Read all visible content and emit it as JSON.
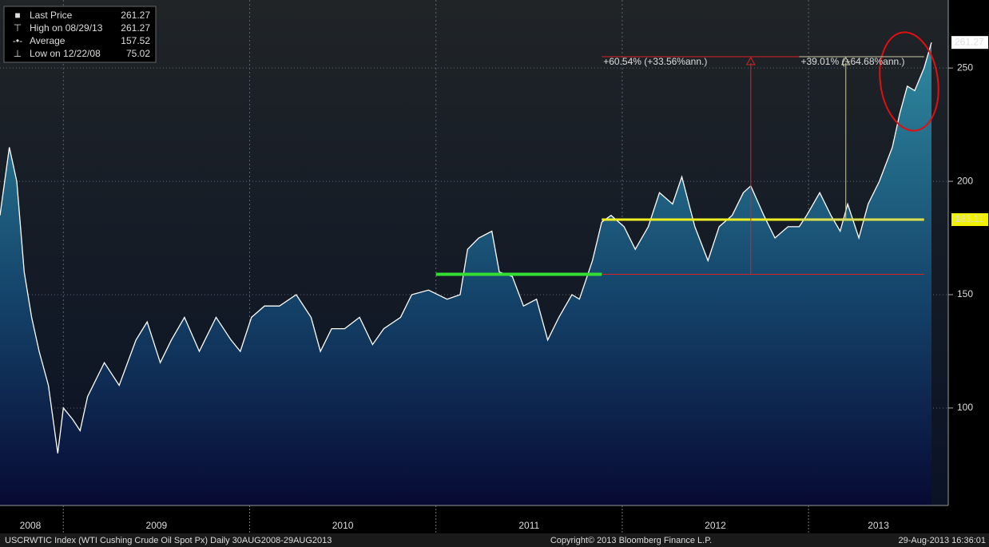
{
  "chart_data": {
    "type": "area",
    "color": "#ffffff",
    "x": [
      2008.66,
      2008.71,
      2008.75,
      2008.79,
      2008.83,
      2008.87,
      2008.92,
      2008.97,
      2009.0,
      2009.05,
      2009.09,
      2009.13,
      2009.22,
      2009.3,
      2009.39,
      2009.45,
      2009.52,
      2009.58,
      2009.65,
      2009.73,
      2009.82,
      2009.9,
      2009.95,
      2010.01,
      2010.08,
      2010.16,
      2010.25,
      2010.33,
      2010.38,
      2010.44,
      2010.51,
      2010.59,
      2010.66,
      2010.72,
      2010.81,
      2010.87,
      2010.96,
      2011.06,
      2011.13,
      2011.17,
      2011.23,
      2011.3,
      2011.34,
      2011.41,
      2011.47,
      2011.54,
      2011.6,
      2011.66,
      2011.73,
      2011.77,
      2011.84,
      2011.89,
      2011.94,
      2012.01,
      2012.07,
      2012.14,
      2012.2,
      2012.27,
      2012.32,
      2012.39,
      2012.46,
      2012.52,
      2012.59,
      2012.65,
      2012.69,
      2012.76,
      2012.82,
      2012.89,
      2012.95,
      2012.99,
      2013.06,
      2013.12,
      2013.17,
      2013.21,
      2013.27,
      2013.32,
      2013.38,
      2013.45,
      2013.49,
      2013.53,
      2013.57,
      2013.62,
      2013.66
    ],
    "values": [
      185,
      215,
      200,
      160,
      140,
      125,
      110,
      80,
      100,
      95,
      90,
      105,
      120,
      110,
      130,
      138,
      120,
      130,
      140,
      125,
      140,
      130,
      125,
      140,
      145,
      145,
      150,
      140,
      125,
      135,
      135,
      140,
      128,
      135,
      140,
      150,
      152,
      148,
      150,
      170,
      175,
      178,
      160,
      158,
      145,
      148,
      130,
      140,
      150,
      148,
      165,
      182,
      185,
      180,
      170,
      180,
      195,
      190,
      202,
      180,
      165,
      180,
      185,
      195,
      198,
      185,
      175,
      180,
      180,
      185,
      195,
      185,
      178,
      190,
      175,
      190,
      200,
      215,
      230,
      242,
      240,
      250,
      261.27
    ],
    "xlim": [
      2008.66,
      2013.75
    ],
    "ylim": [
      57,
      280
    ],
    "yticks": [
      100,
      150,
      200,
      250
    ],
    "xticks": [
      2009,
      2010,
      2011,
      2012,
      2013
    ],
    "year_labels": [
      "2008",
      "2009",
      "2010",
      "2011",
      "2012",
      "2013"
    ],
    "grid": true,
    "legend": [
      {
        "label": "Last Price",
        "value": 261.27
      },
      {
        "label": "High on 08/29/13",
        "value": 261.27
      },
      {
        "label": "Average",
        "value": 157.52
      },
      {
        "label": "Low on 12/22/08",
        "value": 75.02
      }
    ],
    "last_value_label": 261.27,
    "level_value_label": 183.11,
    "levels": [
      {
        "value": 159,
        "from": 2011.0,
        "to": 2011.89,
        "color": "#33dd33"
      },
      {
        "value": 183.11,
        "from": 2011.89,
        "to": 2013.62,
        "color": "#eeee22"
      }
    ],
    "annotations": [
      {
        "text": "+60.54% (+33.56%ann.)",
        "color": "#dd2222",
        "base": 159,
        "top": 255,
        "at": 2012.69,
        "from": 2011.89,
        "to": 2013.62
      },
      {
        "text": "+39.01% (+64.68%ann.)",
        "color": "#c8c8a0",
        "base": 183.11,
        "top": 255,
        "at": 2013.2,
        "from": 2012.95,
        "to": 2013.62
      }
    ],
    "footer": {
      "left": "USCRWTIC Index (WTI Cushing Crude Oil Spot Px)  Daily 30AUG2008-29AUG2013",
      "center": "Copyright© 2013 Bloomberg Finance L.P.",
      "right": "29-Aug-2013 16:36:01"
    }
  }
}
